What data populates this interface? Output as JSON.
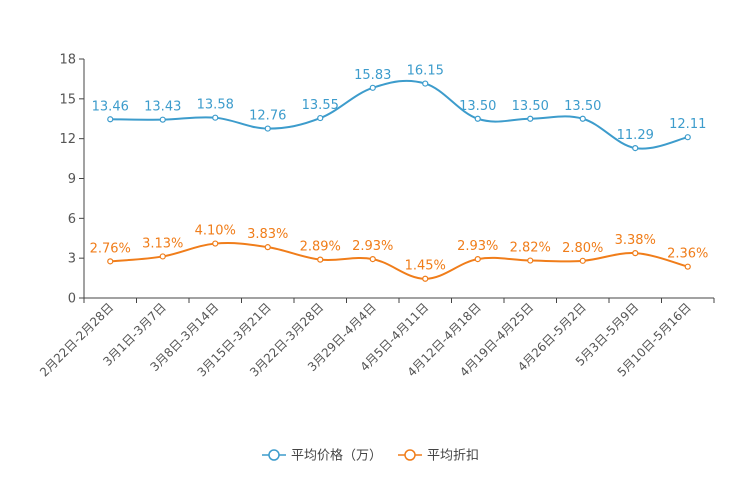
{
  "chart_data": {
    "type": "line",
    "title": "",
    "xlabel": "",
    "ylabel": "",
    "ylim": [
      0,
      18
    ],
    "yticks": [
      0,
      3,
      6,
      9,
      12,
      15,
      18
    ],
    "grid": false,
    "legend_position": "bottom-center",
    "categories": [
      "2月22日-2月28日",
      "3月1日-3月7日",
      "3月8日-3月14日",
      "3月15日-3月21日",
      "3月22日-3月28日",
      "3月29日-4月4日",
      "4月5日-4月11日",
      "4月12日-4月18日",
      "4月19日-4月25日",
      "4月26日-5月2日",
      "5月3日-5月9日",
      "5月10日-5月16日"
    ],
    "series": [
      {
        "name": "平均价格（万）",
        "color": "#3d9ccc",
        "values": [
          13.46,
          13.43,
          13.58,
          12.76,
          13.55,
          15.83,
          16.15,
          13.5,
          13.5,
          13.5,
          11.29,
          12.11
        ],
        "labels": [
          "13.46",
          "13.43",
          "13.58",
          "12.76",
          "13.55",
          "15.83",
          "16.15",
          "13.50",
          "13.50",
          "13.50",
          "11.29",
          "12.11"
        ]
      },
      {
        "name": "平均折扣",
        "color": "#f07d1a",
        "values": [
          2.76,
          3.13,
          4.1,
          3.83,
          2.89,
          2.93,
          1.45,
          2.93,
          2.82,
          2.8,
          3.38,
          2.36
        ],
        "labels": [
          "2.76%",
          "3.13%",
          "4.10%",
          "3.83%",
          "2.89%",
          "2.93%",
          "1.45%",
          "2.93%",
          "2.82%",
          "2.80%",
          "3.38%",
          "2.36%"
        ]
      }
    ]
  }
}
